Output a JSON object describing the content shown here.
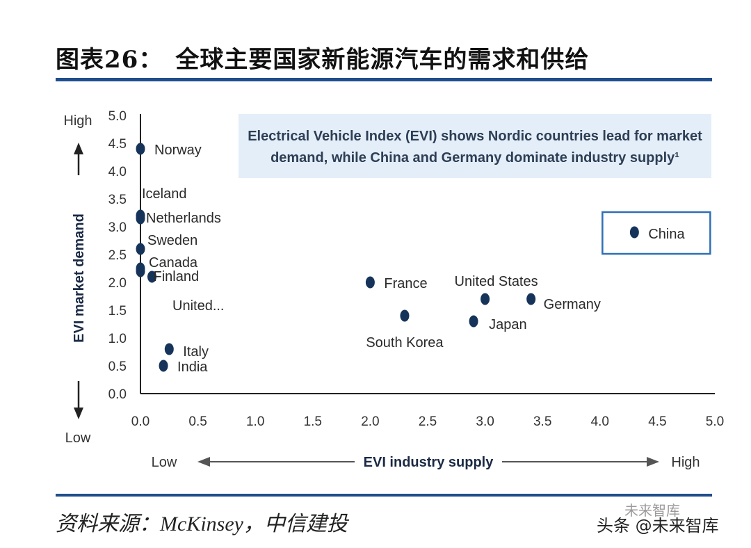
{
  "header": {
    "title": "图表26：　全球主要国家新能源汽车的需求和供给"
  },
  "footer": {
    "source": "资料来源：McKinsey，中信建投",
    "watermark": "头条 @未来智库",
    "watermark_top": "未来智库"
  },
  "chart_data": {
    "type": "scatter",
    "title": "",
    "annotation": [
      "Electrical Vehicle Index (EVI) shows Nordic countries lead for market",
      "demand, while China and Germany dominate industry supply¹"
    ],
    "xlabel": "EVI industry supply",
    "ylabel": "EVI market demand",
    "x_direction_labels": {
      "low": "Low",
      "high": "High"
    },
    "y_direction_labels": {
      "low": "Low",
      "high": "High"
    },
    "xlim": [
      0,
      5
    ],
    "ylim": [
      0,
      5
    ],
    "xticks": [
      "0.0",
      "0.5",
      "1.0",
      "1.5",
      "2.0",
      "2.5",
      "3.0",
      "3.5",
      "4.0",
      "4.5",
      "5.0"
    ],
    "yticks": [
      "0.0",
      "0.5",
      "1.0",
      "1.5",
      "2.0",
      "2.5",
      "3.0",
      "3.5",
      "4.0",
      "4.5",
      "5.0"
    ],
    "grid": false,
    "point_color": "#16345a",
    "highlight_box_color": "#2f6fb5",
    "annotation_bg": "#e4eef8",
    "points": [
      {
        "label": "Norway",
        "x": 0.0,
        "y": 4.4
      },
      {
        "label": "Iceland",
        "x": 0.0,
        "y": 3.2
      },
      {
        "label": "Netherlands",
        "x": 0.0,
        "y": 3.15
      },
      {
        "label": "Sweden",
        "x": 0.0,
        "y": 2.6
      },
      {
        "label": "Canada",
        "x": 0.0,
        "y": 2.25
      },
      {
        "label": "Finland",
        "x": 0.1,
        "y": 2.1
      },
      {
        "label": "United...",
        "x": 0.0,
        "y": 2.2
      },
      {
        "label": "Italy",
        "x": 0.25,
        "y": 0.8
      },
      {
        "label": "India",
        "x": 0.2,
        "y": 0.5
      },
      {
        "label": "France",
        "x": 2.0,
        "y": 2.0
      },
      {
        "label": "South Korea",
        "x": 2.3,
        "y": 1.4
      },
      {
        "label": "United States",
        "x": 3.0,
        "y": 1.7
      },
      {
        "label": "Japan",
        "x": 2.9,
        "y": 1.3
      },
      {
        "label": "Germany",
        "x": 3.4,
        "y": 1.7
      },
      {
        "label": "China",
        "x": 4.3,
        "y": 2.9,
        "highlight": true
      }
    ]
  }
}
